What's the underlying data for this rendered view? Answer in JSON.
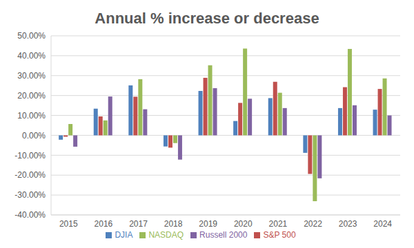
{
  "chart_data": {
    "type": "bar",
    "title": "Annual % increase or decrease",
    "categories": [
      "2015",
      "2016",
      "2017",
      "2018",
      "2019",
      "2020",
      "2021",
      "2022",
      "2023",
      "2024"
    ],
    "series": [
      {
        "name": "DJIA",
        "color": "#4f81bd",
        "values": [
          -2.2,
          13.4,
          25.1,
          -5.6,
          22.3,
          7.2,
          18.7,
          -8.8,
          13.7,
          12.9
        ]
      },
      {
        "name": "S&P 500",
        "color": "#c0504d",
        "values": [
          -0.7,
          9.5,
          19.4,
          -6.2,
          28.9,
          16.3,
          26.9,
          -19.4,
          24.2,
          23.3
        ]
      },
      {
        "name": "NASDAQ",
        "color": "#9bbb59",
        "values": [
          5.7,
          7.5,
          28.2,
          -3.9,
          35.2,
          43.6,
          21.4,
          -33.1,
          43.4,
          28.6
        ]
      },
      {
        "name": "Russell 2000",
        "color": "#8064a2",
        "values": [
          -5.7,
          19.5,
          13.1,
          -12.2,
          23.7,
          18.4,
          13.7,
          -21.6,
          15.1,
          10.0
        ]
      }
    ],
    "ylim": [
      -40,
      50
    ],
    "yticks": [
      {
        "value": -40,
        "label": "-40.00%"
      },
      {
        "value": -30,
        "label": "-30.00%"
      },
      {
        "value": -20,
        "label": "-20.00%"
      },
      {
        "value": -10,
        "label": "-10.00%"
      },
      {
        "value": 0,
        "label": "0.00%"
      },
      {
        "value": 10,
        "label": "10.00%"
      },
      {
        "value": 20,
        "label": "20.00%"
      },
      {
        "value": 30,
        "label": "30.00%"
      },
      {
        "value": 40,
        "label": "40.00%"
      },
      {
        "value": 50,
        "label": "50.00%"
      }
    ],
    "grid": true,
    "legend": "bottom"
  }
}
